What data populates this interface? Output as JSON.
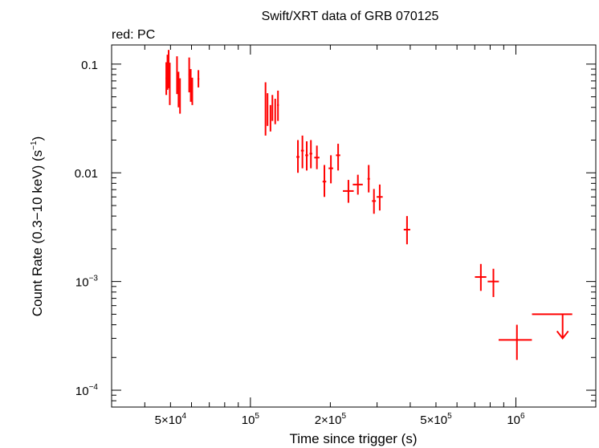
{
  "chart_data": {
    "type": "scatter",
    "title": "Swift/XRT data of GRB 070125",
    "subtitle": "red: PC",
    "xlabel": "Time since trigger (s)",
    "ylabel_parts": {
      "pre": "Count Rate (0.3",
      "dash": "−",
      "mid": "10 keV) (s",
      "exp": "−1",
      "post": ")"
    },
    "xscale": "log",
    "yscale": "log",
    "xlim": [
      30000,
      2000000
    ],
    "ylim": [
      7e-05,
      0.15
    ],
    "grid": false,
    "x_ticks": [
      {
        "value": 50000,
        "mant": "5×10",
        "exp": "4"
      },
      {
        "value": 100000,
        "mant": "10",
        "exp": "5"
      },
      {
        "value": 200000,
        "mant": "2×10",
        "exp": "5"
      },
      {
        "value": 500000,
        "mant": "5×10",
        "exp": "5"
      },
      {
        "value": 1000000,
        "mant": "10",
        "exp": "6"
      }
    ],
    "y_ticks": [
      {
        "value": 0.1,
        "mant": "0.1",
        "exp": ""
      },
      {
        "value": 0.01,
        "mant": "0.01",
        "exp": ""
      },
      {
        "value": 0.001,
        "mant": "10",
        "exp": "−3"
      },
      {
        "value": 0.0001,
        "mant": "10",
        "exp": "−4"
      }
    ],
    "series": [
      {
        "color": "#ff0000",
        "points": [
          {
            "x": 48200,
            "xerr": [
              300,
              300
            ],
            "y": 0.074,
            "yerr": [
              0.022,
              0.03
            ]
          },
          {
            "x": 48700,
            "xerr": [
              300,
              300
            ],
            "y": 0.082,
            "yerr": [
              0.024,
              0.04
            ]
          },
          {
            "x": 49200,
            "xerr": [
              300,
              300
            ],
            "y": 0.09,
            "yerr": [
              0.03,
              0.045
            ]
          },
          {
            "x": 49700,
            "xerr": [
              300,
              300
            ],
            "y": 0.068,
            "yerr": [
              0.026,
              0.035
            ]
          },
          {
            "x": 52900,
            "xerr": [
              300,
              300
            ],
            "y": 0.078,
            "yerr": [
              0.025,
              0.04
            ]
          },
          {
            "x": 53600,
            "xerr": [
              300,
              300
            ],
            "y": 0.06,
            "yerr": [
              0.02,
              0.025
            ]
          },
          {
            "x": 54300,
            "xerr": [
              300,
              300
            ],
            "y": 0.052,
            "yerr": [
              0.017,
              0.022
            ]
          },
          {
            "x": 58800,
            "xerr": [
              300,
              300
            ],
            "y": 0.08,
            "yerr": [
              0.025,
              0.035
            ]
          },
          {
            "x": 59600,
            "xerr": [
              300,
              300
            ],
            "y": 0.065,
            "yerr": [
              0.02,
              0.025
            ]
          },
          {
            "x": 60400,
            "xerr": [
              300,
              300
            ],
            "y": 0.055,
            "yerr": [
              0.013,
              0.02
            ]
          },
          {
            "x": 63700,
            "xerr": [
              500,
              500
            ],
            "y": 0.073,
            "yerr": [
              0.012,
              0.015
            ]
          },
          {
            "x": 114000,
            "xerr": [
              500,
              500
            ],
            "y": 0.033,
            "yerr": [
              0.011,
              0.035
            ]
          },
          {
            "x": 116000,
            "xerr": [
              500,
              500
            ],
            "y": 0.039,
            "yerr": [
              0.012,
              0.015
            ]
          },
          {
            "x": 119000,
            "xerr": [
              500,
              500
            ],
            "y": 0.032,
            "yerr": [
              0.008,
              0.01
            ]
          },
          {
            "x": 121000,
            "xerr": [
              500,
              500
            ],
            "y": 0.04,
            "yerr": [
              0.01,
              0.012
            ]
          },
          {
            "x": 124000,
            "xerr": [
              500,
              500
            ],
            "y": 0.036,
            "yerr": [
              0.008,
              0.012
            ]
          },
          {
            "x": 127000,
            "xerr": [
              1000,
              1000
            ],
            "y": 0.042,
            "yerr": [
              0.012,
              0.015
            ]
          },
          {
            "x": 151000,
            "xerr": [
              2000,
              2000
            ],
            "y": 0.014,
            "yerr": [
              0.004,
              0.006
            ]
          },
          {
            "x": 157000,
            "xerr": [
              2000,
              2000
            ],
            "y": 0.016,
            "yerr": [
              0.005,
              0.006
            ]
          },
          {
            "x": 163000,
            "xerr": [
              2000,
              2000
            ],
            "y": 0.0145,
            "yerr": [
              0.004,
              0.005
            ]
          },
          {
            "x": 169000,
            "xerr": [
              2000,
              2000
            ],
            "y": 0.015,
            "yerr": [
              0.004,
              0.005
            ]
          },
          {
            "x": 178000,
            "xerr": [
              4000,
              4000
            ],
            "y": 0.0138,
            "yerr": [
              0.003,
              0.004
            ]
          },
          {
            "x": 190000,
            "xerr": [
              3000,
              3000
            ],
            "y": 0.0083,
            "yerr": [
              0.0023,
              0.0035
            ]
          },
          {
            "x": 201000,
            "xerr": [
              4000,
              4000
            ],
            "y": 0.011,
            "yerr": [
              0.003,
              0.0035
            ]
          },
          {
            "x": 214000,
            "xerr": [
              4000,
              4000
            ],
            "y": 0.0145,
            "yerr": [
              0.004,
              0.004
            ]
          },
          {
            "x": 234000,
            "xerr": [
              11000,
              11000
            ],
            "y": 0.0068,
            "yerr": [
              0.0015,
              0.0018
            ]
          },
          {
            "x": 254000,
            "xerr": [
              11000,
              11000
            ],
            "y": 0.0078,
            "yerr": [
              0.0015,
              0.0018
            ]
          },
          {
            "x": 279000,
            "xerr": [
              3000,
              3000
            ],
            "y": 0.0088,
            "yerr": [
              0.0022,
              0.003
            ]
          },
          {
            "x": 292000,
            "xerr": [
              5000,
              5000
            ],
            "y": 0.0055,
            "yerr": [
              0.0013,
              0.0016
            ]
          },
          {
            "x": 307000,
            "xerr": [
              8000,
              8000
            ],
            "y": 0.006,
            "yerr": [
              0.0015,
              0.0018
            ]
          },
          {
            "x": 389000,
            "xerr": [
              11000,
              11000
            ],
            "y": 0.003,
            "yerr": [
              0.0008,
              0.001
            ]
          },
          {
            "x": 738000,
            "xerr": [
              37000,
              36000
            ],
            "y": 0.0011,
            "yerr": [
              0.00028,
              0.00035
            ]
          },
          {
            "x": 823000,
            "xerr": [
              40000,
              40000
            ],
            "y": 0.001,
            "yerr": [
              0.00028,
              0.00031
            ]
          },
          {
            "x": 1009000,
            "xerr": [
              148000,
              140000
            ],
            "y": 0.00029,
            "yerr": [
              0.0001,
              0.00011
            ]
          }
        ],
        "upper_limits": [
          {
            "x": 1500000,
            "xerr": [
              350000,
              0
            ],
            "y": 0.0005,
            "arrow_to": 0.0003
          }
        ]
      }
    ]
  }
}
